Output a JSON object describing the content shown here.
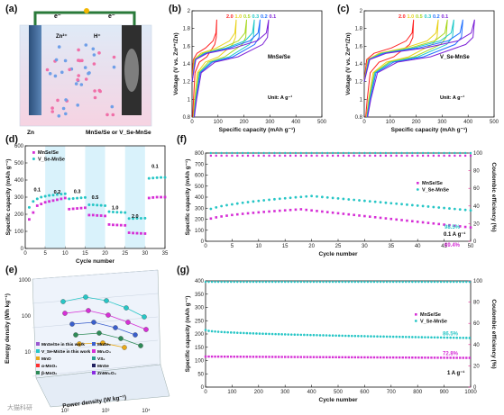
{
  "figure": {
    "panel_labels": [
      "(a)",
      "(b)",
      "(c)",
      "(d)",
      "(e)",
      "(f)",
      "(g)"
    ],
    "watermark": "大猫科研"
  },
  "schematic": {
    "electron_left": "e⁻",
    "electron_right": "e⁻",
    "zn_ion": "Zn²⁺",
    "proton": "H⁺",
    "anode_label": "Zn",
    "cathode_label": "MnSe/Se or V_Se-MnSe"
  },
  "colors": {
    "magenta": "#d62fd6",
    "cyan": "#27c6c6",
    "pink_axis": "#e0238f",
    "highlight": "#d9f2fb",
    "r20": "#ff2020",
    "r10": "#e9d21a",
    "r05": "#a8d820",
    "r03": "#1ec9c9",
    "r02": "#2070ff",
    "r01": "#7b1fd6"
  },
  "chart_data": [
    {
      "id": "b",
      "type": "line",
      "annotation": "MnSe/Se",
      "unit_note": "Unit: A g⁻¹",
      "xlabel": "Specific capacity (mAh g⁻¹)",
      "ylabel": "Voltage (V vs. Zn²⁺/Zn)",
      "xlim": [
        0,
        500
      ],
      "ylim": [
        0.8,
        2.0
      ],
      "xticks": [
        0,
        100,
        200,
        300,
        400,
        500
      ],
      "yticks": [
        0.8,
        1.0,
        1.2,
        1.4,
        1.6,
        1.8,
        2.0
      ],
      "rate_labels": [
        "2.0",
        "1.0",
        "0.5",
        "0.3",
        "0.2",
        "0.1"
      ],
      "series": [
        {
          "name": "2.0",
          "capacity": 95
        },
        {
          "name": "1.0",
          "capacity": 170
        },
        {
          "name": "0.5",
          "capacity": 210
        },
        {
          "name": "0.3",
          "capacity": 240
        },
        {
          "name": "0.2",
          "capacity": 262
        },
        {
          "name": "0.1",
          "capacity": 295
        }
      ]
    },
    {
      "id": "c",
      "type": "line",
      "annotation": "V_Se-MnSe",
      "unit_note": "Unit: A g⁻¹",
      "xlabel": "Specific capacity (mAh g⁻¹)",
      "ylabel": "Voltage (V vs. Zn²⁺/Zn)",
      "xlim": [
        0,
        500
      ],
      "ylim": [
        0.8,
        2.0
      ],
      "xticks": [
        0,
        100,
        200,
        300,
        400,
        500
      ],
      "yticks": [
        0.8,
        1.0,
        1.2,
        1.4,
        1.6,
        1.8,
        2.0
      ],
      "rate_labels": [
        "2.0",
        "1.0",
        "0.5",
        "0.3",
        "0.2",
        "0.1"
      ],
      "series": [
        {
          "name": "2.0",
          "capacity": 190
        },
        {
          "name": "1.0",
          "capacity": 285
        },
        {
          "name": "0.5",
          "capacity": 320
        },
        {
          "name": "0.3",
          "capacity": 345
        },
        {
          "name": "0.2",
          "capacity": 380
        },
        {
          "name": "0.1",
          "capacity": 425
        }
      ]
    },
    {
      "id": "d",
      "type": "scatter",
      "xlabel": "Cycle number",
      "ylabel": "Specific capacity (mAh g⁻¹)",
      "xlim": [
        0,
        35
      ],
      "ylim": [
        0,
        600
      ],
      "xticks": [
        0,
        5,
        10,
        15,
        20,
        25,
        30,
        35
      ],
      "yticks": [
        0,
        100,
        200,
        300,
        400,
        500,
        600
      ],
      "rate_labels": [
        {
          "text": "0.1",
          "x": 3,
          "y": 335
        },
        {
          "text": "0.2",
          "x": 8,
          "y": 320
        },
        {
          "text": "0.3",
          "x": 13,
          "y": 325
        },
        {
          "text": "0.5",
          "x": 17.5,
          "y": 290
        },
        {
          "text": "1.0",
          "x": 22.5,
          "y": 230
        },
        {
          "text": "2.0",
          "x": 27.5,
          "y": 180
        },
        {
          "text": "0.1",
          "x": 32.5,
          "y": 470
        }
      ],
      "highlight_bands": [
        [
          5,
          10
        ],
        [
          15,
          20
        ],
        [
          25,
          30
        ]
      ],
      "series": [
        {
          "name": "MnSe/Se",
          "y": [
            170,
            210,
            250,
            260,
            270,
            275,
            280,
            285,
            290,
            295,
            230,
            232,
            234,
            236,
            238,
            195,
            195,
            193,
            192,
            190,
            140,
            138,
            137,
            136,
            135,
            92,
            90,
            89,
            88,
            87,
            295,
            298,
            300,
            300,
            300
          ]
        },
        {
          "name": "V_Se-MnSe",
          "y": [
            240,
            275,
            290,
            300,
            305,
            310,
            312,
            315,
            318,
            320,
            290,
            292,
            294,
            296,
            298,
            255,
            255,
            253,
            252,
            250,
            215,
            213,
            212,
            211,
            210,
            175,
            175,
            176,
            176,
            177,
            410,
            412,
            414,
            415,
            415
          ]
        }
      ]
    },
    {
      "id": "e",
      "type": "scatter",
      "xlabel": "Power density (W kg⁻¹)",
      "ylabel": "Energy density (Wh kg⁻¹)",
      "ylim": [
        10,
        1000
      ],
      "xticks": [
        "10²",
        "10³",
        "10⁴"
      ],
      "yticks": [
        "10",
        "100",
        "1000"
      ],
      "legend": [
        {
          "name": "MnSe/Se in this work",
          "color": "#9b59d0"
        },
        {
          "name": "MnSe₂",
          "color": "#3a5fcd"
        },
        {
          "name": "V_Se-MnSe in this work",
          "color": "#27c6c6"
        },
        {
          "name": "Mn₂O₃",
          "color": "#d62fd6"
        },
        {
          "name": "MnO",
          "color": "#e9a91a"
        },
        {
          "name": "VS₂",
          "color": "#2a9b8f"
        },
        {
          "name": "α-MnO₂",
          "color": "#ff3030"
        },
        {
          "name": "MnSe",
          "color": "#202060"
        },
        {
          "name": "β-MnO₂",
          "color": "#2e8b57"
        },
        {
          "name": "ZnMn₂O₄",
          "color": "#8a2be2"
        }
      ]
    },
    {
      "id": "f",
      "type": "scatter",
      "xlabel": "Cycle number",
      "ylabel": "Specific capacity (mAh g⁻¹)",
      "ylabel2": "Coulombic efficiency (%)",
      "xlim": [
        0,
        50
      ],
      "ylim": [
        0,
        800
      ],
      "y2lim": [
        0,
        100
      ],
      "xticks": [
        0,
        5,
        10,
        15,
        20,
        25,
        30,
        35,
        40,
        45,
        50
      ],
      "yticks": [
        0,
        100,
        200,
        300,
        400,
        500,
        600,
        700,
        800
      ],
      "y2ticks": [
        0,
        20,
        40,
        60,
        80,
        100
      ],
      "current_note": "0.1 A g⁻¹",
      "retention": [
        "98.5%",
        "69.4%"
      ],
      "series": [
        {
          "name": "MnSe/Se",
          "start": 180,
          "peak": 290,
          "end": 125
        },
        {
          "name": "V_Se-MnSe",
          "start": 260,
          "peak": 410,
          "end": 280
        },
        {
          "name": "CE_MnSe/Se",
          "value": 97
        },
        {
          "name": "CE_V_Se-MnSe",
          "value": 100
        }
      ]
    },
    {
      "id": "g",
      "type": "scatter",
      "xlabel": "Cycle number",
      "ylabel": "Specific capacity (mAh g⁻¹)",
      "ylabel2": "Coulombic efficiency (%)",
      "xlim": [
        0,
        1000
      ],
      "ylim": [
        0,
        400
      ],
      "y2lim": [
        0,
        100
      ],
      "xticks": [
        0,
        100,
        200,
        300,
        400,
        500,
        600,
        700,
        800,
        900,
        1000
      ],
      "yticks": [
        0,
        50,
        100,
        150,
        200,
        250,
        300,
        350,
        400
      ],
      "y2ticks": [
        0,
        20,
        40,
        60,
        80,
        100
      ],
      "current_note": "1 A g⁻¹",
      "retention": [
        "86.5%",
        "72.8%"
      ],
      "series": [
        {
          "name": "MnSe/Se",
          "start": 115,
          "end": 110
        },
        {
          "name": "V_Se-MnSe",
          "start": 215,
          "end": 185
        },
        {
          "name": "CE",
          "value": 99
        }
      ]
    }
  ]
}
